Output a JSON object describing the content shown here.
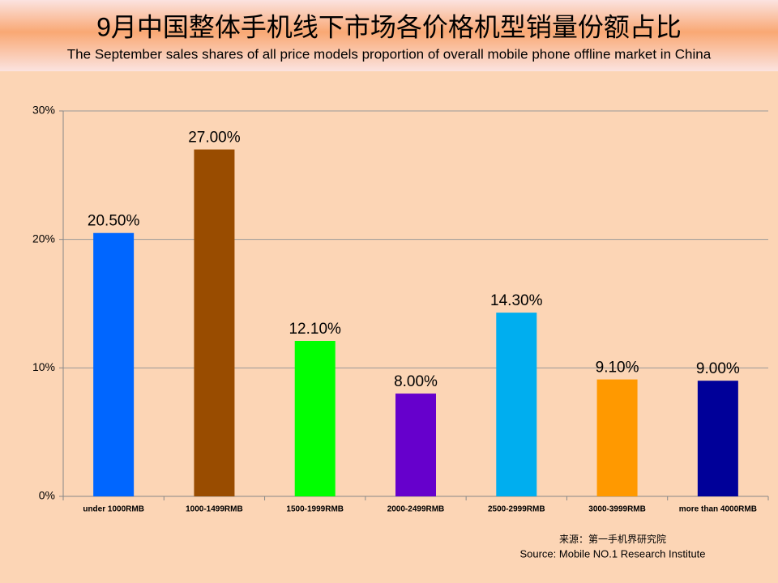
{
  "chart_data": {
    "type": "bar",
    "title": "9月中国整体手机线下市场各价格机型销量份额占比",
    "subtitle": "The September sales shares of all price models proportion of overall mobile phone offline market in China",
    "categories": [
      "under 1000RMB",
      "1000-1499RMB",
      "1500-1999RMB",
      "2000-2499RMB",
      "2500-2999RMB",
      "3000-3999RMB",
      "more than 4000RMB"
    ],
    "values": [
      20.5,
      27,
      12.1,
      8,
      14.3,
      9.1,
      9
    ],
    "value_labels": [
      "20.50%",
      "27.00%",
      "12.10%",
      "8.00%",
      "14.30%",
      "9.10%",
      "9.00%"
    ],
    "colors": [
      "#0066ff",
      "#994c00",
      "#00ff00",
      "#6600cc",
      "#00aeef",
      "#ff9900",
      "#000099"
    ],
    "ylim": [
      0,
      30
    ],
    "yticks": [
      {
        "value": 0,
        "label": "0%"
      },
      {
        "value": 10,
        "label": "10%"
      },
      {
        "value": 20,
        "label": "20%"
      },
      {
        "value": 30,
        "label": "30%"
      }
    ],
    "grid": true,
    "source_cn": "来源：第一手机界研究院",
    "source_en": "Source: Mobile NO.1 Research Institute"
  }
}
